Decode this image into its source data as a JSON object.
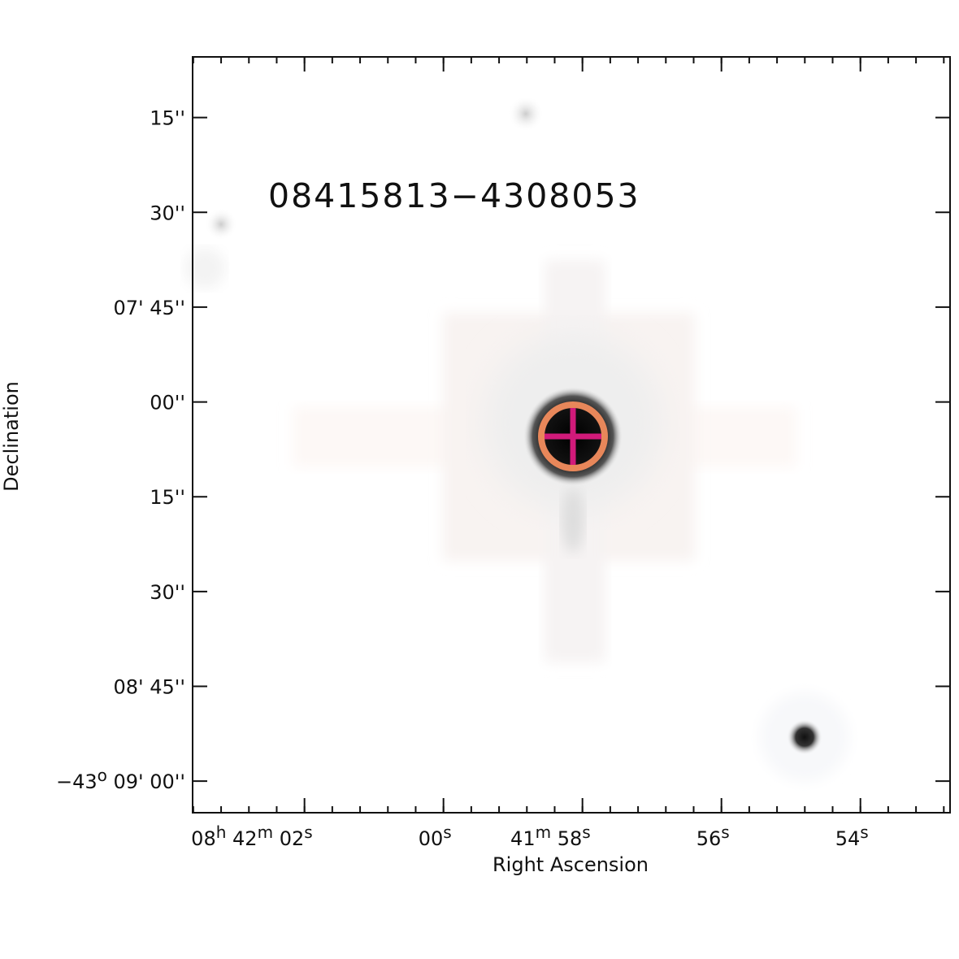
{
  "chart_data": {
    "type": "image",
    "title": "08415813−4308053",
    "title_color": "#1d5e3f",
    "x_label": "Right Ascension",
    "y_label": "Declination",
    "xlim": [
      63.61,
      52.71
    ],
    "ylim": [
      425.4,
      545.0
    ],
    "xminor": 0.4,
    "xticks": [
      {
        "value": 62,
        "label": [
          "08",
          "h",
          " 42",
          "m",
          " 02",
          "s"
        ]
      },
      {
        "value": 60,
        "label": [
          "00",
          "s"
        ]
      },
      {
        "value": 58,
        "label": [
          "41",
          "m",
          " 58",
          "s"
        ]
      },
      {
        "value": 56,
        "label": [
          "56",
          "s"
        ]
      },
      {
        "value": 54,
        "label": [
          "54",
          "s"
        ]
      }
    ],
    "yticks": [
      {
        "value": 435,
        "label": [
          "15''"
        ]
      },
      {
        "value": 450,
        "label": [
          "30''"
        ]
      },
      {
        "value": 465,
        "label": [
          "07' 45''"
        ]
      },
      {
        "value": 480,
        "label": [
          "00''"
        ]
      },
      {
        "value": 495,
        "label": [
          "15''"
        ]
      },
      {
        "value": 510,
        "label": [
          "30''"
        ]
      },
      {
        "value": 525,
        "label": [
          "08' 45''"
        ]
      },
      {
        "value": 540,
        "label": [
          "−43",
          "o",
          " 09' 00''"
        ]
      }
    ]
  }
}
